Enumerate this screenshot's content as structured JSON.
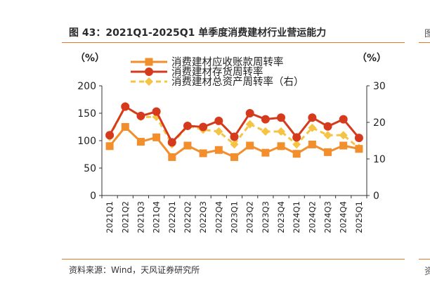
{
  "figure": {
    "title": "图 43：2021Q1-2025Q1 单季度消费建材行业营运能力",
    "source": "资料来源：Wind，天风证券研究所",
    "edge_title_fragment": "图",
    "edge_source_fragment": "资"
  },
  "colors": {
    "rule": "#e8792b",
    "receivables": "#f28e2b",
    "inventory": "#d63a1c",
    "total_assets": "#f6c445"
  },
  "chart_data": {
    "type": "line",
    "title": "",
    "ylabel": "（%）",
    "y2label": "（%）",
    "ylim": [
      0,
      200
    ],
    "y2lim": [
      0,
      30
    ],
    "yticks": [
      "200",
      "150",
      "100",
      "50",
      "0"
    ],
    "y2ticks": [
      "30",
      "20",
      "10",
      "0"
    ],
    "legend_position": "top",
    "grid": false,
    "categories": [
      "2021Q1",
      "2021Q2",
      "2021Q3",
      "2021Q4",
      "2022Q1",
      "2022Q2",
      "2022Q3",
      "2022Q4",
      "2023Q1",
      "2023Q2",
      "2023Q3",
      "2023Q4",
      "2024Q1",
      "2024Q2",
      "2024Q3",
      "2024Q4",
      "2025Q1"
    ],
    "series": [
      {
        "name": "消费建材应收账款周转率",
        "axis": "left",
        "marker": "square",
        "values": [
          90,
          125,
          98,
          106,
          70,
          91,
          77,
          83,
          70,
          91,
          78,
          90,
          76,
          93,
          79,
          91,
          85
        ]
      },
      {
        "name": "消费建材存货周转率",
        "axis": "left",
        "marker": "circle",
        "values": [
          110,
          162,
          145,
          153,
          97,
          127,
          125,
          136,
          107,
          150,
          139,
          142,
          106,
          142,
          126,
          139,
          105
        ]
      },
      {
        "name": "消费建材总资产周转率（右）",
        "axis": "right",
        "marker": "diamond",
        "dashed": true,
        "values": [
          16,
          24.5,
          21.5,
          21.5,
          14,
          19,
          18,
          17.5,
          14,
          19.5,
          17.5,
          17.5,
          14,
          18.5,
          16.5,
          16.5,
          13
        ]
      }
    ]
  }
}
